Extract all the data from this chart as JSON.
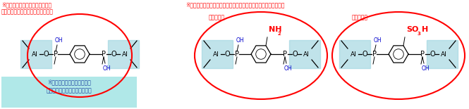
{
  "bg_color": "#ffffff",
  "fig_width": 6.65,
  "fig_height": 1.55,
  "dpi": 100,
  "text_left1": "※非シリカ系メソボーラス材料で",
  "text_left2": "初めて細孔壁に芳香族化合物を導入",
  "text_center": "※酸性や塩基性の置換基をもつホスホン酸化合物からも合成が可能",
  "text_bottom1": "※リン酸アルミニウム表面は",
  "text_bottom2": "メソボーラス材料で唯一親水的",
  "label_basic": "【塩基性】",
  "label_nh2": "NH",
  "label_nh2_sub": "2",
  "label_acidic": "【強酸性】",
  "label_so3h": "SO",
  "label_so3h_sub": "3",
  "label_so3h_end": "H",
  "red": "#ff0000",
  "blue": "#0000cc",
  "darkblue": "#1a1aaa",
  "black": "#000000",
  "lightblue_shade": "#9fd4e0",
  "bottom_bg": "#b0e8e8"
}
